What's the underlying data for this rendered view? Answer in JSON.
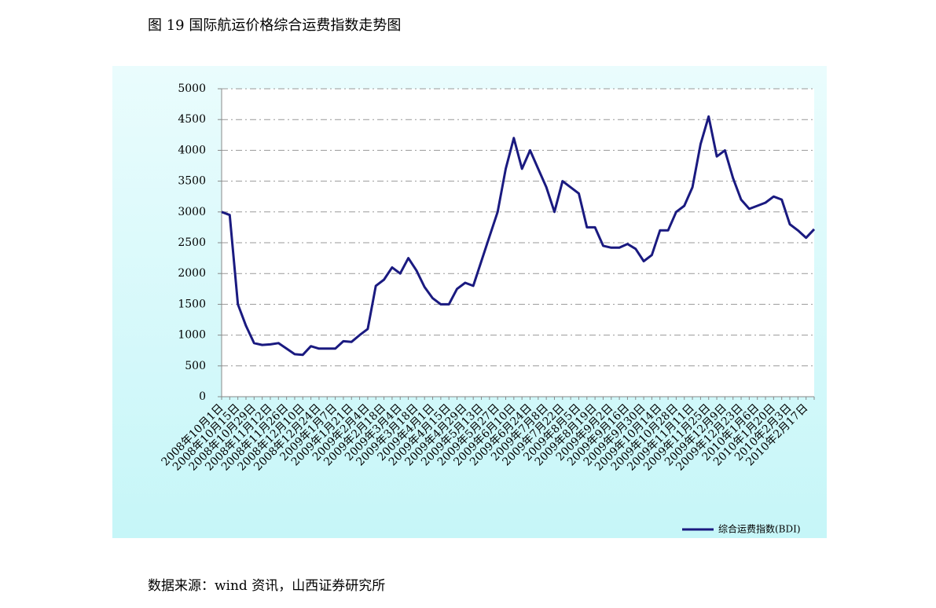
{
  "chart_data": {
    "type": "line",
    "title": "图 19 国际航运价格综合运费指数走势图",
    "source": "数据来源：wind 资讯，山西证券研究所",
    "categories": [
      "2008年10月1日",
      null,
      "2008年10月15日",
      null,
      "2008年10月29日",
      null,
      "2008年11月12日",
      null,
      "2008年11月26日",
      null,
      "2008年12月10日",
      null,
      "2008年12月24日",
      null,
      "2009年1月7日",
      null,
      "2009年1月21日",
      null,
      "2009年2月4日",
      null,
      "2009年2月18日",
      null,
      "2009年3月4日",
      null,
      "2009年3月18日",
      null,
      "2009年4月1日",
      null,
      "2009年4月15日",
      null,
      "2009年4月29日",
      null,
      "2009年5月13日",
      null,
      "2009年5月27日",
      null,
      "2009年6月10日",
      null,
      "2009年6月24日",
      null,
      "2009年7月8日",
      null,
      "2009年7月22日",
      null,
      "2009年8月5日",
      null,
      "2009年8月19日",
      null,
      "2009年9月2日",
      null,
      "2009年9月16日",
      null,
      "2009年9月30日",
      null,
      "2009年10月14日",
      null,
      "2009年10月28日",
      null,
      "2009年11月11日",
      null,
      "2009年11月25日",
      null,
      "2009年12月9日",
      null,
      "2009年12月23日",
      null,
      "2010年1月6日",
      null,
      "2010年1月20日",
      null,
      "2010年2月3日",
      null,
      "2010年2月17日",
      null
    ],
    "series": [
      {
        "name": "综合运费指数(BDI)",
        "color": "#1a1a80",
        "values": [
          3000,
          2950,
          1500,
          1150,
          870,
          840,
          850,
          870,
          780,
          690,
          680,
          820,
          780,
          780,
          780,
          900,
          890,
          1000,
          1100,
          1800,
          1900,
          2100,
          2000,
          2250,
          2050,
          1780,
          1600,
          1500,
          1500,
          1750,
          1850,
          1800,
          2200,
          2600,
          3000,
          3700,
          4200,
          3700,
          4000,
          3700,
          3400,
          3000,
          3500,
          3400,
          3300,
          2750,
          2750,
          2450,
          2420,
          2420,
          2480,
          2400,
          2200,
          2300,
          2700,
          2700,
          3000,
          3100,
          3400,
          4100,
          4550,
          3900,
          4000,
          3550,
          3200,
          3050,
          3100,
          3150,
          3250,
          3200,
          2800,
          2700,
          2580,
          2720
        ]
      }
    ],
    "ylim": [
      0,
      5000
    ],
    "yticks": [
      0,
      500,
      1000,
      1500,
      2000,
      2500,
      3000,
      3500,
      4000,
      4500,
      5000
    ],
    "grid": true,
    "legend": "bottom-right"
  }
}
